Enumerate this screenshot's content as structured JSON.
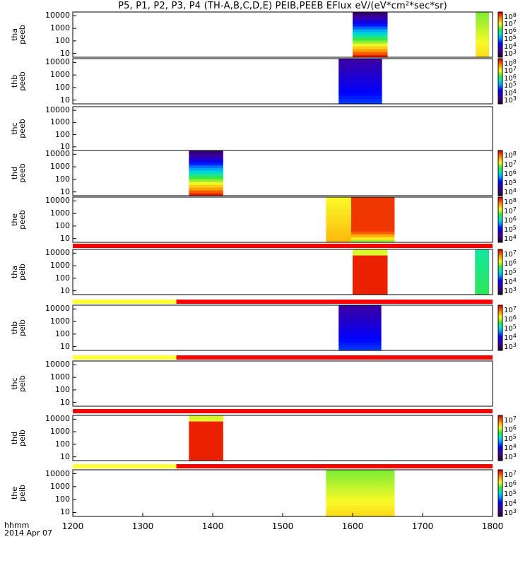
{
  "title": "P5, P1, P2, P3, P4 (TH-A,B,C,D,E) PEIB,PEEB EFlux eV/(eV*cm²*sec*sr)",
  "x_axis": {
    "label_line1": "hhmm",
    "label_line2": "2014 Apr 07",
    "ticks": [
      "1200",
      "1300",
      "1400",
      "1500",
      "1600",
      "1700",
      "1800"
    ]
  },
  "y_ticks": [
    "10000",
    "1000",
    "100",
    "10"
  ],
  "colors": {
    "flag_red": "#ff0000",
    "flag_yellow": "#ffff33",
    "axis": "#000000"
  },
  "chart_data": {
    "type": "heatmap",
    "title": "P5, P1, P2, P3, P4 (TH-A,B,C,D,E) PEIB,PEEB EFlux eV/(eV*cm²*sec*sr)",
    "xlabel": "hhmm",
    "date": "2014 Apr 07",
    "x_range": [
      1200,
      1800
    ],
    "y_scale": "log",
    "y_range": [
      5,
      20000
    ],
    "panels": [
      {
        "id": "tha-peeb",
        "label_line1": "tha",
        "label_line2": "peeb",
        "species": "electron",
        "colorbar_exps": [
          "8",
          "7",
          "6",
          "5",
          "4",
          "3"
        ],
        "blocks": [
          {
            "t0": 1600,
            "t1": 1650,
            "profile": "rainbow_bot"
          },
          {
            "t0": 1776,
            "t1": 1795,
            "profile": "yellow_green"
          }
        ]
      },
      {
        "id": "thb-peeb",
        "label_line1": "thb",
        "label_line2": "peeb",
        "species": "electron",
        "colorbar_exps": [
          "8",
          "7",
          "6",
          "5",
          "4",
          "3"
        ],
        "blocks": [
          {
            "t0": 1580,
            "t1": 1642,
            "profile": "blue_mixed"
          }
        ]
      },
      {
        "id": "thc-peeb",
        "label_line1": "thc",
        "label_line2": "peeb",
        "species": "electron",
        "colorbar_exps": [],
        "blocks": []
      },
      {
        "id": "thd-peeb",
        "label_line1": "thd",
        "label_line2": "peeb",
        "species": "electron",
        "colorbar_exps": [
          "8",
          "7",
          "6",
          "5",
          "4"
        ],
        "blocks": [
          {
            "t0": 1366,
            "t1": 1415,
            "profile": "rainbow_bot"
          }
        ]
      },
      {
        "id": "the-peeb",
        "label_line1": "the",
        "label_line2": "peeb",
        "species": "electron",
        "colorbar_exps": [
          "8",
          "7",
          "6",
          "5",
          "4"
        ],
        "blocks": [
          {
            "t0": 1562,
            "t1": 1598,
            "profile": "yellow_orange"
          },
          {
            "t0": 1598,
            "t1": 1660,
            "profile": "red_green"
          }
        ]
      },
      {
        "id": "tha-peib",
        "label_line1": "tha",
        "label_line2": "peib",
        "species": "ion",
        "colorbar_exps": [
          "7",
          "6",
          "5",
          "4",
          "3"
        ],
        "blocks": [
          {
            "t0": 1600,
            "t1": 1650,
            "profile": "red_block"
          },
          {
            "t0": 1775,
            "t1": 1795,
            "profile": "green_cyan"
          }
        ]
      },
      {
        "id": "thb-peib",
        "label_line1": "thb",
        "label_line2": "peib",
        "species": "ion",
        "colorbar_exps": [
          "7",
          "6",
          "5",
          "4",
          "3"
        ],
        "blocks": [
          {
            "t0": 1580,
            "t1": 1641,
            "profile": "blue_mixed"
          }
        ]
      },
      {
        "id": "thc-peib",
        "label_line1": "thc",
        "label_line2": "peib",
        "species": "ion",
        "colorbar_exps": [],
        "blocks": []
      },
      {
        "id": "thd-peib",
        "label_line1": "thd",
        "label_line2": "peib",
        "species": "ion",
        "colorbar_exps": [
          "7",
          "6",
          "5",
          "4",
          "3"
        ],
        "blocks": [
          {
            "t0": 1366,
            "t1": 1415,
            "profile": "red_block"
          }
        ]
      },
      {
        "id": "the-peib",
        "label_line1": "the",
        "label_line2": "peib",
        "species": "ion",
        "colorbar_exps": [
          "7",
          "6",
          "5",
          "4",
          "3"
        ],
        "blocks": [
          {
            "t0": 1562,
            "t1": 1660,
            "profile": "yellow_green"
          }
        ]
      }
    ],
    "flag_bars": [
      {
        "after_panel": "the-peeb",
        "segments": [
          {
            "t0": 1200,
            "t1": 1800,
            "color": "red"
          }
        ]
      },
      {
        "after_panel": "tha-peib",
        "segments": [
          {
            "t0": 1200,
            "t1": 1348,
            "color": "yellow"
          },
          {
            "t0": 1348,
            "t1": 1800,
            "color": "red"
          }
        ]
      },
      {
        "after_panel": "thb-peib",
        "segments": [
          {
            "t0": 1200,
            "t1": 1348,
            "color": "yellow"
          },
          {
            "t0": 1348,
            "t1": 1800,
            "color": "red"
          }
        ]
      },
      {
        "after_panel": "thc-peib",
        "segments": [
          {
            "t0": 1200,
            "t1": 1800,
            "color": "red"
          }
        ]
      },
      {
        "after_panel": "thd-peib",
        "segments": [
          {
            "t0": 1200,
            "t1": 1348,
            "color": "yellow"
          },
          {
            "t0": 1348,
            "t1": 1800,
            "color": "red"
          }
        ]
      }
    ]
  }
}
